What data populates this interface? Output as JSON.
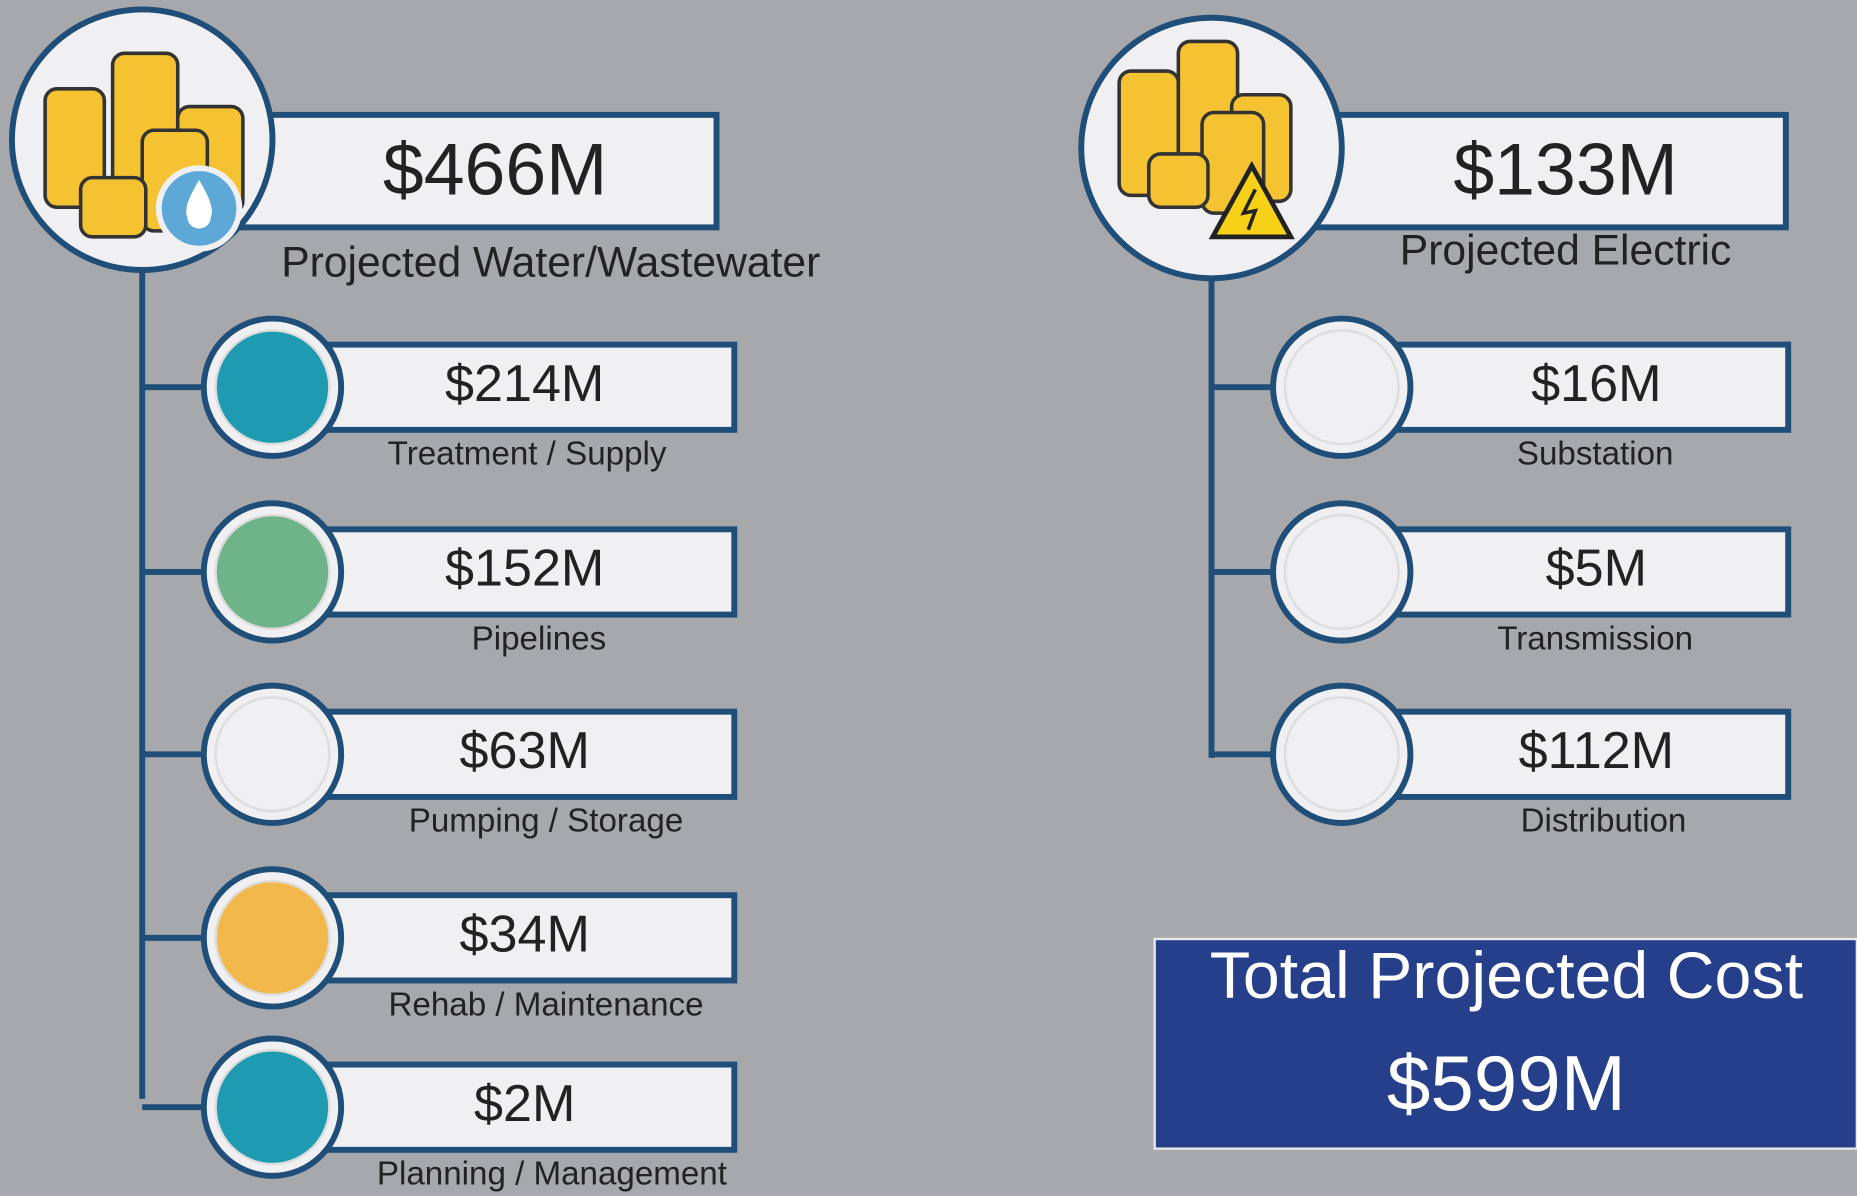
{
  "water": {
    "total": "$466M",
    "label": "Projected Water/Wastewater",
    "items": [
      {
        "value": "$214M",
        "label": "Treatment / Supply"
      },
      {
        "value": "$152M",
        "label": "Pipelines"
      },
      {
        "value": "$63M",
        "label": "Pumping / Storage"
      },
      {
        "value": "$34M",
        "label": "Rehab / Maintenance"
      },
      {
        "value": "$2M",
        "label": "Planning / Management"
      }
    ]
  },
  "electric": {
    "total": "$133M",
    "label": "Projected Electric",
    "items": [
      {
        "value": "$16M",
        "label": "Substation"
      },
      {
        "value": "$5M",
        "label": "Transmission"
      },
      {
        "value": "$112M",
        "label": "Distribution"
      }
    ]
  },
  "total": {
    "label": "Total Projected Cost",
    "value": "$599M"
  }
}
